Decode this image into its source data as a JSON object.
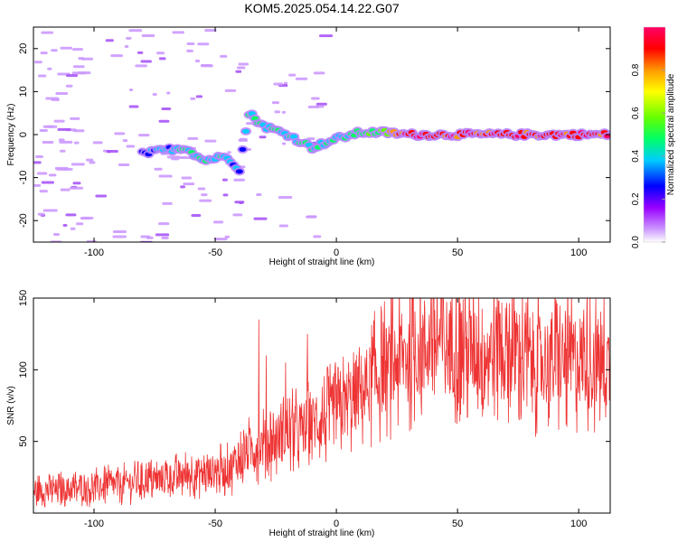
{
  "title": "KOM5.2025.054.14.22.G07",
  "chart_data": [
    {
      "type": "heatmap",
      "xlabel": "Height of straight line (km)",
      "ylabel": "Frequency (Hz)",
      "xlim": [
        -125,
        113
      ],
      "ylim": [
        -25,
        25
      ],
      "x_ticks": [
        -100,
        -50,
        0,
        50,
        100
      ],
      "y_ticks": [
        -20,
        -10,
        0,
        10,
        20
      ],
      "colorbar": {
        "label": "Normalized spectral amplitude",
        "range": [
          0,
          1
        ],
        "ticks": [
          0.0,
          0.2,
          0.4,
          0.6,
          0.8
        ],
        "colors": [
          "#ffffff",
          "#cc99ff",
          "#9900ff",
          "#0000ff",
          "#00ccff",
          "#00ff66",
          "#66ff00",
          "#ffff00",
          "#ff9900",
          "#ff0000",
          "#ff0066"
        ]
      },
      "ridge": [
        {
          "x": -80,
          "y": -4.5,
          "a": 0.3
        },
        {
          "x": -70,
          "y": -3.5,
          "a": 0.4
        },
        {
          "x": -62,
          "y": -3,
          "a": 0.45
        },
        {
          "x": -55,
          "y": -6,
          "a": 0.45
        },
        {
          "x": -45,
          "y": -5,
          "a": 0.4
        },
        {
          "x": -40,
          "y": -8,
          "a": 0.3
        },
        {
          "x": -36,
          "y": 5,
          "a": 0.45
        },
        {
          "x": -30,
          "y": 2,
          "a": 0.45
        },
        {
          "x": -20,
          "y": 0,
          "a": 0.5
        },
        {
          "x": -10,
          "y": -3,
          "a": 0.45
        },
        {
          "x": 0,
          "y": -1,
          "a": 0.45
        },
        {
          "x": 10,
          "y": 0.5,
          "a": 0.5
        },
        {
          "x": 20,
          "y": 0.5,
          "a": 0.6
        },
        {
          "x": 30,
          "y": 0,
          "a": 0.95
        },
        {
          "x": 50,
          "y": 0,
          "a": 0.9
        },
        {
          "x": 80,
          "y": 0,
          "a": 0.9
        },
        {
          "x": 113,
          "y": 0,
          "a": 0.9
        }
      ]
    },
    {
      "type": "line",
      "xlabel": "Height of straight line (km)",
      "ylabel": "SNR (v/v)",
      "xlim": [
        -125,
        113
      ],
      "ylim": [
        0,
        150
      ],
      "x_ticks": [
        -100,
        -50,
        0,
        50,
        100
      ],
      "y_ticks": [
        50,
        100,
        150
      ],
      "series": [
        {
          "color": "#ee3333",
          "trend": [
            {
              "x": -125,
              "y": 15
            },
            {
              "x": -100,
              "y": 18
            },
            {
              "x": -80,
              "y": 22
            },
            {
              "x": -60,
              "y": 27
            },
            {
              "x": -45,
              "y": 30
            },
            {
              "x": -35,
              "y": 45
            },
            {
              "x": -20,
              "y": 55
            },
            {
              "x": -10,
              "y": 62
            },
            {
              "x": 0,
              "y": 70
            },
            {
              "x": 10,
              "y": 85
            },
            {
              "x": 20,
              "y": 100
            },
            {
              "x": 30,
              "y": 112
            },
            {
              "x": 40,
              "y": 120
            },
            {
              "x": 50,
              "y": 115
            },
            {
              "x": 60,
              "y": 112
            },
            {
              "x": 70,
              "y": 115
            },
            {
              "x": 80,
              "y": 108
            },
            {
              "x": 90,
              "y": 105
            },
            {
              "x": 100,
              "y": 108
            },
            {
              "x": 113,
              "y": 103
            }
          ],
          "spikes": [
            {
              "x": -32,
              "y": 135
            },
            {
              "x": -29,
              "y": 110
            },
            {
              "x": -12,
              "y": 125
            },
            {
              "x": -21,
              "y": 105
            },
            {
              "x": 39,
              "y": 152
            },
            {
              "x": 67,
              "y": 148
            }
          ]
        }
      ]
    }
  ]
}
